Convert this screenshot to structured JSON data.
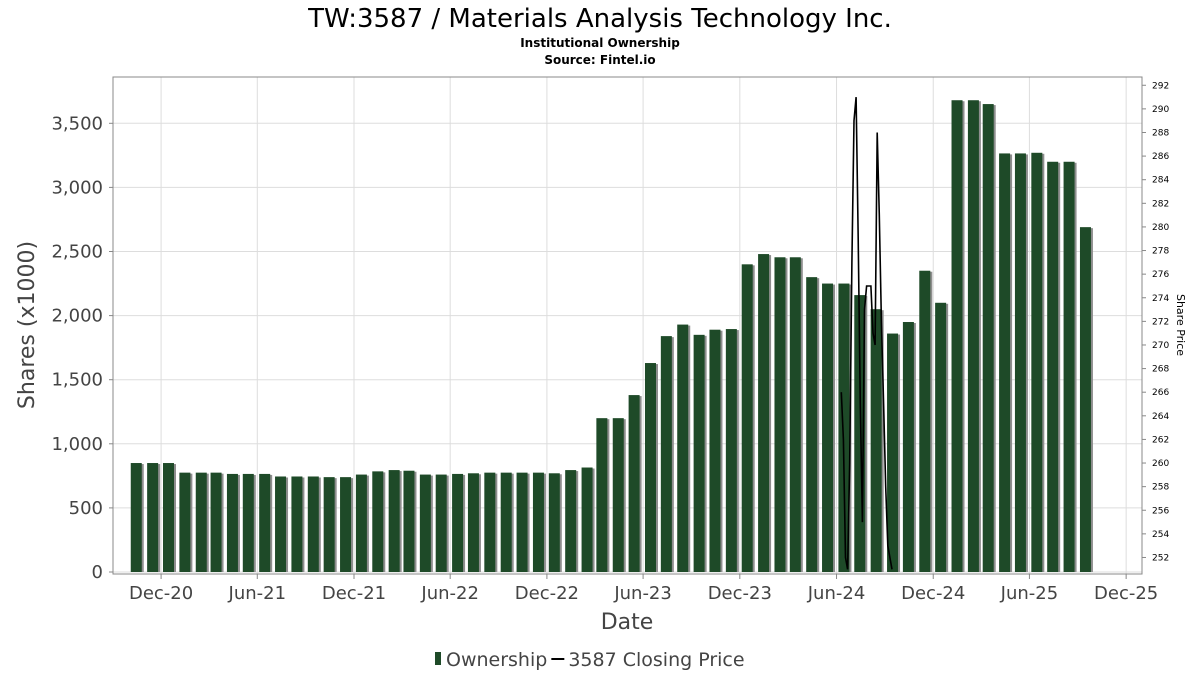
{
  "header": {
    "title": "TW:3587 / Materials Analysis Technology Inc.",
    "subtitle": "Institutional Ownership",
    "source": "Source: Fintel.io"
  },
  "chart_data": {
    "type": "bar",
    "xlabel": "Date",
    "ylabel": "Shares (x1000)",
    "y2label": "Share Price",
    "ylim": [
      0,
      3800
    ],
    "y2lim": [
      250.6,
      292.7
    ],
    "yticks": [
      0,
      500,
      1000,
      1500,
      2000,
      2500,
      3000,
      3500
    ],
    "ytick_labels": [
      "0",
      "500",
      "1,000",
      "1,500",
      "2,000",
      "2,500",
      "3,000",
      "3,500"
    ],
    "y2ticks": [
      252,
      254,
      256,
      258,
      260,
      262,
      264,
      266,
      268,
      270,
      272,
      274,
      276,
      278,
      280,
      282,
      284,
      286,
      288,
      290,
      292
    ],
    "xlim": [
      "2020-09-01",
      "2025-12-31"
    ],
    "xticks": [
      "2020-12-01",
      "2021-06-01",
      "2021-12-01",
      "2022-06-01",
      "2022-12-01",
      "2023-06-01",
      "2023-12-01",
      "2024-06-01",
      "2024-12-01",
      "2025-06-01",
      "2025-12-01"
    ],
    "xtick_labels": [
      "Dec-20",
      "Jun-21",
      "Dec-21",
      "Jun-22",
      "Dec-22",
      "Jun-23",
      "Dec-23",
      "Jun-24",
      "Dec-24",
      "Jun-25",
      "Dec-25"
    ],
    "grid": true,
    "legend_position": "bottom-center",
    "colors": {
      "bar": "#1e4a28",
      "bar_shadow": "#8e8e8e",
      "line": "#000000",
      "grid": "#dddddd"
    },
    "series": [
      {
        "name": "Ownership",
        "kind": "bar",
        "axis": "left",
        "x": [
          "2020-10-15",
          "2020-11-15",
          "2020-12-15",
          "2021-01-15",
          "2021-02-15",
          "2021-03-15",
          "2021-04-15",
          "2021-05-15",
          "2021-06-15",
          "2021-07-15",
          "2021-08-15",
          "2021-09-15",
          "2021-10-15",
          "2021-11-15",
          "2021-12-15",
          "2022-01-15",
          "2022-02-15",
          "2022-03-15",
          "2022-04-15",
          "2022-05-15",
          "2022-06-15",
          "2022-07-15",
          "2022-08-15",
          "2022-09-15",
          "2022-10-15",
          "2022-11-15",
          "2022-12-15",
          "2023-01-15",
          "2023-02-15",
          "2023-03-15",
          "2023-04-15",
          "2023-05-15",
          "2023-06-15",
          "2023-07-15",
          "2023-08-15",
          "2023-09-15",
          "2023-10-15",
          "2023-11-15",
          "2023-12-15",
          "2024-01-15",
          "2024-02-15",
          "2024-03-15",
          "2024-04-15",
          "2024-05-15",
          "2024-06-15",
          "2024-07-15",
          "2024-08-15",
          "2024-09-15",
          "2024-10-15",
          "2024-11-15",
          "2024-12-15",
          "2025-01-15",
          "2025-02-15",
          "2025-03-15",
          "2025-04-15",
          "2025-05-15",
          "2025-06-15",
          "2025-07-15",
          "2025-08-15",
          "2025-09-15"
        ],
        "values": [
          850,
          850,
          850,
          775,
          775,
          775,
          765,
          765,
          765,
          745,
          745,
          745,
          740,
          740,
          760,
          785,
          795,
          790,
          760,
          760,
          765,
          770,
          775,
          775,
          775,
          775,
          770,
          795,
          815,
          1200,
          1200,
          1380,
          1630,
          1840,
          1930,
          1850,
          1890,
          1895,
          2400,
          2480,
          2455,
          2455,
          2300,
          2250,
          2250,
          2160,
          2050,
          1860,
          1950,
          2350,
          2100,
          3680,
          3680,
          3650,
          3265,
          3265,
          3270,
          3200,
          3200,
          2690
        ]
      },
      {
        "name": "3587 Closing Price",
        "kind": "line",
        "axis": "right",
        "x": [
          "2024-06-10",
          "2024-06-14",
          "2024-06-18",
          "2024-06-22",
          "2024-06-26",
          "2024-06-30",
          "2024-07-04",
          "2024-07-08",
          "2024-07-12",
          "2024-07-16",
          "2024-07-20",
          "2024-07-24",
          "2024-07-28",
          "2024-08-01",
          "2024-08-05",
          "2024-08-09",
          "2024-08-13",
          "2024-08-17",
          "2024-08-21",
          "2024-08-25",
          "2024-08-29",
          "2024-09-02",
          "2024-09-06",
          "2024-09-10",
          "2024-09-14"
        ],
        "values": [
          266,
          262,
          252,
          251,
          260,
          277,
          289,
          291,
          279,
          265,
          255,
          273,
          275,
          275,
          275,
          271,
          270,
          288,
          281,
          272,
          265,
          258,
          253,
          252,
          251
        ]
      }
    ]
  }
}
